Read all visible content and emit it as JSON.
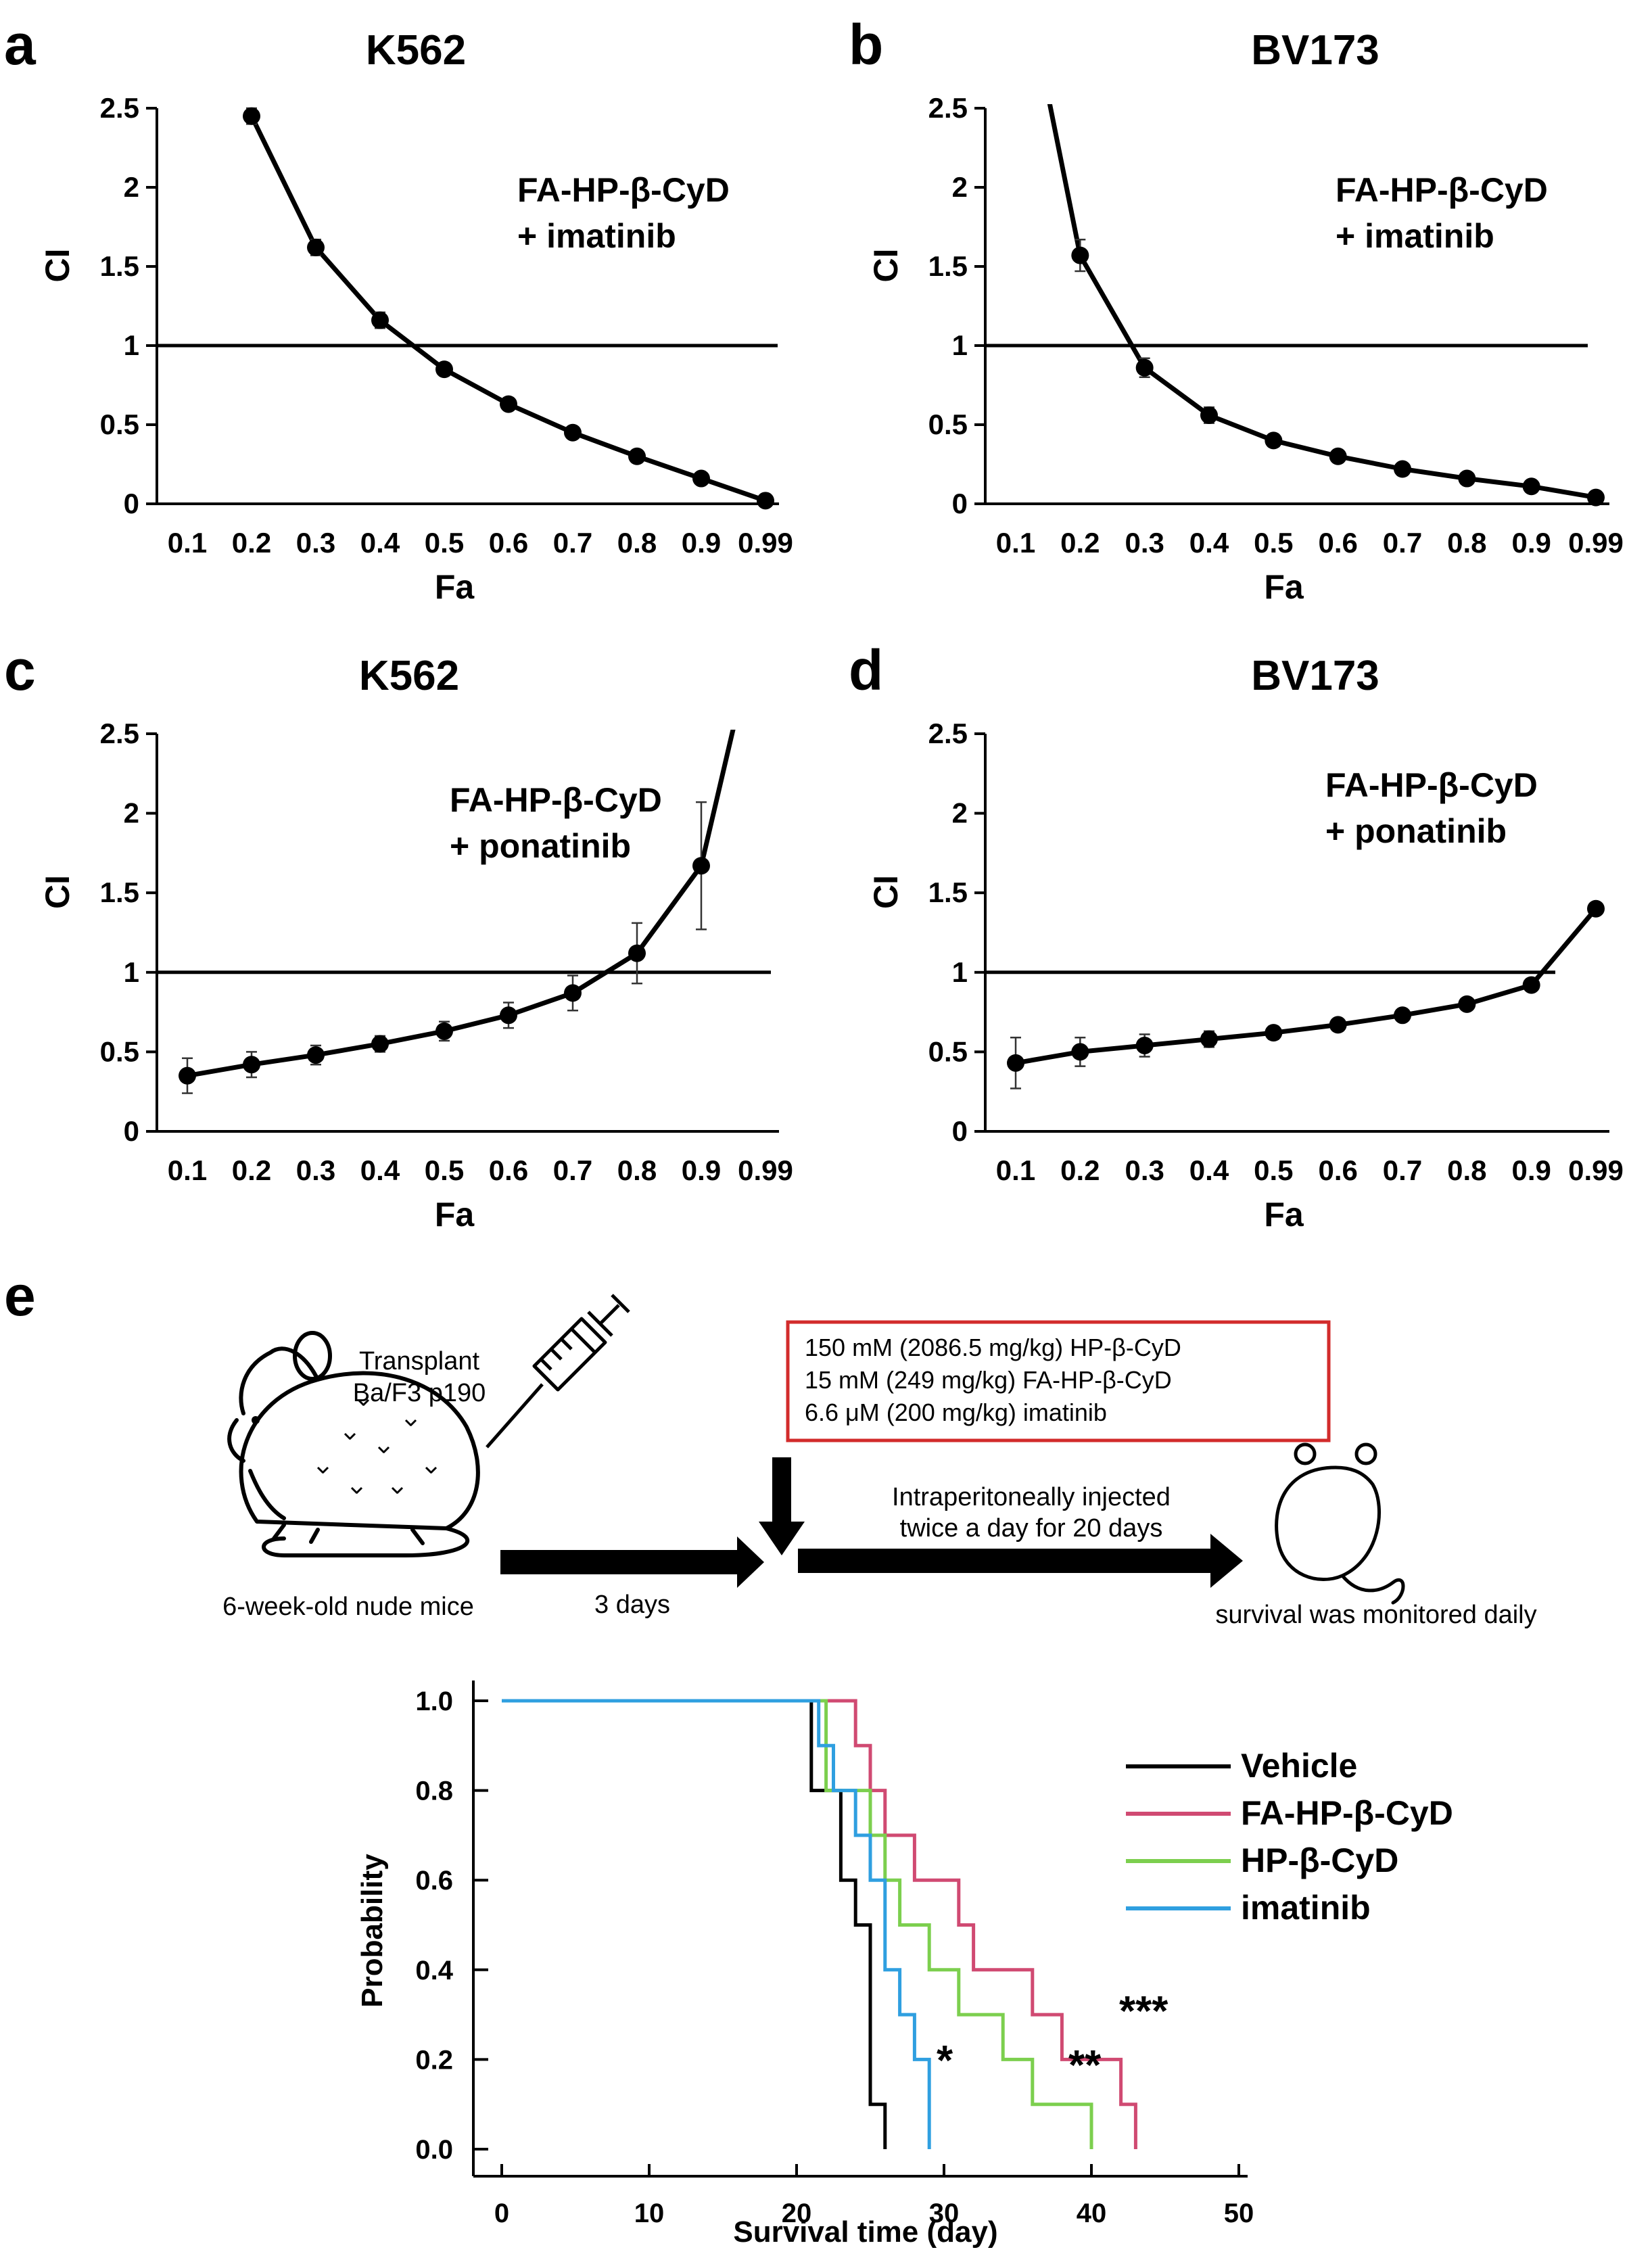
{
  "panel_labels": [
    "a",
    "b",
    "c",
    "d",
    "e"
  ],
  "chart_data": [
    {
      "id": "a",
      "type": "line",
      "title": "K562",
      "xlabel": "Fa",
      "ylabel": "CI",
      "x_ticks": [
        "0.1",
        "0.2",
        "0.3",
        "0.4",
        "0.5",
        "0.6",
        "0.7",
        "0.8",
        "0.9",
        "0.99"
      ],
      "y_ticks": [
        "0",
        "0.5",
        "1",
        "1.5",
        "2",
        "2.5"
      ],
      "ylim": [
        0,
        2.5
      ],
      "reference_line": 1,
      "annotation": [
        "FA-HP-β-CyD",
        "+ imatinib"
      ],
      "points": [
        {
          "x": "0.2",
          "y": 2.45,
          "err": 0.05
        },
        {
          "x": "0.3",
          "y": 1.62,
          "err": 0.05
        },
        {
          "x": "0.4",
          "y": 1.16,
          "err": 0.05
        },
        {
          "x": "0.5",
          "y": 0.85,
          "err": 0.04
        },
        {
          "x": "0.6",
          "y": 0.63,
          "err": 0.03
        },
        {
          "x": "0.7",
          "y": 0.45,
          "err": 0.02
        },
        {
          "x": "0.8",
          "y": 0.3,
          "err": 0.02
        },
        {
          "x": "0.9",
          "y": 0.16,
          "err": 0.02
        },
        {
          "x": "0.99",
          "y": 0.02,
          "err": 0.01
        }
      ]
    },
    {
      "id": "b",
      "type": "line",
      "title": "BV173",
      "xlabel": "Fa",
      "ylabel": "CI",
      "x_ticks": [
        "0.1",
        "0.2",
        "0.3",
        "0.4",
        "0.5",
        "0.6",
        "0.7",
        "0.8",
        "0.9",
        "0.99"
      ],
      "y_ticks": [
        "0",
        "0.5",
        "1",
        "1.5",
        "2",
        "2.5"
      ],
      "ylim": [
        0,
        2.5
      ],
      "reference_line": 1,
      "annotation": [
        "FA-HP-β-CyD",
        "+ imatinib"
      ],
      "lead_in": {
        "x": "0.1",
        "y": 3.6
      },
      "points": [
        {
          "x": "0.2",
          "y": 1.57,
          "err": 0.1
        },
        {
          "x": "0.3",
          "y": 0.86,
          "err": 0.06
        },
        {
          "x": "0.4",
          "y": 0.56,
          "err": 0.05
        },
        {
          "x": "0.5",
          "y": 0.4,
          "err": 0.04
        },
        {
          "x": "0.6",
          "y": 0.3,
          "err": 0.03
        },
        {
          "x": "0.7",
          "y": 0.22,
          "err": 0.02
        },
        {
          "x": "0.8",
          "y": 0.16,
          "err": 0.02
        },
        {
          "x": "0.9",
          "y": 0.11,
          "err": 0.02
        },
        {
          "x": "0.99",
          "y": 0.04,
          "err": 0.01
        }
      ]
    },
    {
      "id": "c",
      "type": "line",
      "title": "K562",
      "xlabel": "Fa",
      "ylabel": "CI",
      "x_ticks": [
        "0.1",
        "0.2",
        "0.3",
        "0.4",
        "0.5",
        "0.6",
        "0.7",
        "0.8",
        "0.9",
        "0.99"
      ],
      "y_ticks": [
        "0",
        "0.5",
        "1",
        "1.5",
        "2",
        "2.5"
      ],
      "ylim": [
        0,
        2.5
      ],
      "reference_line": 1,
      "annotation": [
        "FA-HP-β-CyD",
        "+ ponatinib"
      ],
      "lead_out": {
        "x": "0.99",
        "y": 3.4
      },
      "points": [
        {
          "x": "0.1",
          "y": 0.35,
          "err": 0.11
        },
        {
          "x": "0.2",
          "y": 0.42,
          "err": 0.08
        },
        {
          "x": "0.3",
          "y": 0.48,
          "err": 0.06
        },
        {
          "x": "0.4",
          "y": 0.55,
          "err": 0.05
        },
        {
          "x": "0.5",
          "y": 0.63,
          "err": 0.06
        },
        {
          "x": "0.6",
          "y": 0.73,
          "err": 0.08
        },
        {
          "x": "0.7",
          "y": 0.87,
          "err": 0.11
        },
        {
          "x": "0.8",
          "y": 1.12,
          "err": 0.19
        },
        {
          "x": "0.9",
          "y": 1.67,
          "err": 0.4
        }
      ]
    },
    {
      "id": "d",
      "type": "line",
      "title": "BV173",
      "xlabel": "Fa",
      "ylabel": "CI",
      "x_ticks": [
        "0.1",
        "0.2",
        "0.3",
        "0.4",
        "0.5",
        "0.6",
        "0.7",
        "0.8",
        "0.9",
        "0.99"
      ],
      "y_ticks": [
        "0",
        "0.5",
        "1",
        "1.5",
        "2",
        "2.5"
      ],
      "ylim": [
        0,
        2.5
      ],
      "reference_line": 1,
      "annotation": [
        "FA-HP-β-CyD",
        "+ ponatinib"
      ],
      "points": [
        {
          "x": "0.1",
          "y": 0.43,
          "err": 0.16
        },
        {
          "x": "0.2",
          "y": 0.5,
          "err": 0.09
        },
        {
          "x": "0.3",
          "y": 0.54,
          "err": 0.07
        },
        {
          "x": "0.4",
          "y": 0.58,
          "err": 0.05
        },
        {
          "x": "0.5",
          "y": 0.62,
          "err": 0.04
        },
        {
          "x": "0.6",
          "y": 0.67,
          "err": 0.03
        },
        {
          "x": "0.7",
          "y": 0.73,
          "err": 0.02
        },
        {
          "x": "0.8",
          "y": 0.8,
          "err": 0.02
        },
        {
          "x": "0.9",
          "y": 0.92,
          "err": 0.03
        },
        {
          "x": "0.99",
          "y": 1.4,
          "err": 0.02
        }
      ]
    },
    {
      "id": "e",
      "type": "line",
      "title": "",
      "xlabel": "Survival time (day)",
      "ylabel": "Probability",
      "xlim": [
        0,
        50
      ],
      "ylim": [
        0,
        1
      ],
      "x_ticks": [
        0,
        10,
        20,
        30,
        40,
        50
      ],
      "y_ticks": [
        "0.0",
        "0.2",
        "0.4",
        "0.6",
        "0.8",
        "1.0"
      ],
      "series": [
        {
          "name": "Vehicle",
          "color": "#000000",
          "steps": [
            [
              0,
              1.0
            ],
            [
              21,
              1.0
            ],
            [
              21,
              0.8
            ],
            [
              23,
              0.8
            ],
            [
              23,
              0.6
            ],
            [
              24,
              0.6
            ],
            [
              24,
              0.5
            ],
            [
              25,
              0.5
            ],
            [
              25,
              0.1
            ],
            [
              26,
              0.1
            ],
            [
              26,
              0.0
            ]
          ]
        },
        {
          "name": "FA-HP-β-CyD",
          "color": "#d04a72",
          "steps": [
            [
              0,
              1.0
            ],
            [
              24,
              1.0
            ],
            [
              24,
              0.9
            ],
            [
              25,
              0.9
            ],
            [
              25,
              0.8
            ],
            [
              26,
              0.8
            ],
            [
              26,
              0.7
            ],
            [
              28,
              0.7
            ],
            [
              28,
              0.6
            ],
            [
              31,
              0.6
            ],
            [
              31,
              0.5
            ],
            [
              32,
              0.5
            ],
            [
              32,
              0.4
            ],
            [
              36,
              0.4
            ],
            [
              36,
              0.3
            ],
            [
              38,
              0.3
            ],
            [
              38,
              0.2
            ],
            [
              42,
              0.2
            ],
            [
              42,
              0.1
            ],
            [
              43,
              0.1
            ],
            [
              43,
              0.0
            ]
          ]
        },
        {
          "name": "HP-β-CyD",
          "color": "#7ccf4e",
          "steps": [
            [
              0,
              1.0
            ],
            [
              22,
              1.0
            ],
            [
              22,
              0.8
            ],
            [
              25,
              0.8
            ],
            [
              25,
              0.7
            ],
            [
              26,
              0.7
            ],
            [
              26,
              0.6
            ],
            [
              27,
              0.6
            ],
            [
              27,
              0.5
            ],
            [
              29,
              0.5
            ],
            [
              29,
              0.4
            ],
            [
              31,
              0.4
            ],
            [
              31,
              0.3
            ],
            [
              34,
              0.3
            ],
            [
              34,
              0.2
            ],
            [
              36,
              0.2
            ],
            [
              36,
              0.1
            ],
            [
              40,
              0.1
            ],
            [
              40,
              0.0
            ]
          ]
        },
        {
          "name": "imatinib",
          "color": "#2f9fe0",
          "steps": [
            [
              0,
              1.0
            ],
            [
              21.5,
              1.0
            ],
            [
              21.5,
              0.9
            ],
            [
              22.5,
              0.9
            ],
            [
              22.5,
              0.8
            ],
            [
              24,
              0.8
            ],
            [
              24,
              0.7
            ],
            [
              25,
              0.7
            ],
            [
              25,
              0.6
            ],
            [
              26,
              0.6
            ],
            [
              26,
              0.4
            ],
            [
              27,
              0.4
            ],
            [
              27,
              0.3
            ],
            [
              28,
              0.3
            ],
            [
              28,
              0.2
            ],
            [
              29,
              0.2
            ],
            [
              29,
              0.0
            ]
          ]
        }
      ],
      "significance": [
        {
          "label": "*",
          "near": "imatinib"
        },
        {
          "label": "**",
          "near": "HP-β-CyD"
        },
        {
          "label": "***",
          "near": "FA-HP-β-CyD"
        }
      ]
    }
  ],
  "schematic": {
    "transplant_label": [
      "Transplant",
      "Ba/F3 p190"
    ],
    "mice_label": "6-week-old nude mice",
    "days_label": "3 days",
    "dose_box": [
      "150 mM (2086.5 mg/kg) HP-β-CyD",
      "15 mM (249 mg/kg) FA-HP-β-CyD",
      "6.6 μM (200 mg/kg) imatinib"
    ],
    "injection_label": [
      "Intraperitoneally injected",
      "twice a day for 20 days"
    ],
    "monitor_label": "survival was monitored daily",
    "colors": {
      "box_border": "#d22b2b"
    }
  }
}
